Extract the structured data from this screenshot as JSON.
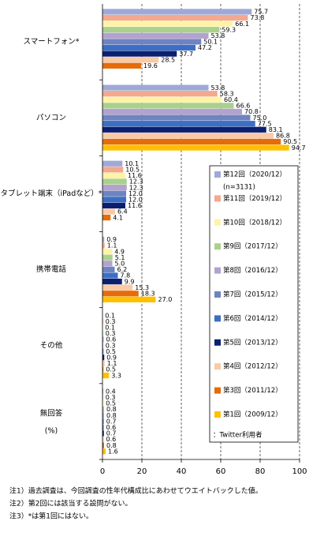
{
  "chart_data": {
    "type": "hbar",
    "categories": [
      "スマートフォン*",
      "パソコン",
      "タブレット端末（iPadなど）*",
      "携帯電話",
      "その他",
      "無回答"
    ],
    "xlabel": "(%)",
    "xlim": [
      0,
      100
    ],
    "xticks": [
      0,
      20,
      40,
      60,
      80,
      100
    ],
    "grid": true,
    "legend_notes": [
      "(n=3131)",
      "：Twitter利用者"
    ],
    "series": [
      {
        "name": "第12回（2020/12）",
        "color": "#9ea9d8",
        "values": [
          75.7,
          53.8,
          10.1,
          0.9,
          0.1,
          0.4
        ],
        "value_labels": [
          "75.7",
          "53.8",
          "10.1",
          "0.9",
          "0.1",
          "0.4"
        ]
      },
      {
        "name": "第11回（2019/12）",
        "color": "#f4a88e",
        "values": [
          73.8,
          58.3,
          10.5,
          1.1,
          0.3,
          0.3
        ],
        "value_labels": [
          "73.8",
          "58.3",
          "10.5",
          "1.1",
          "0.3",
          "0.3"
        ]
      },
      {
        "name": "第10回（2018/12）",
        "color": "#fff3a6",
        "values": [
          66.1,
          60.4,
          11.6,
          4.9,
          0.1,
          0.5
        ],
        "value_labels": [
          "66.1",
          "60.4",
          "11.6",
          "4.9",
          "0.1",
          "0.5"
        ]
      },
      {
        "name": "第9回（2017/12）",
        "color": "#a9d18e",
        "values": [
          59.3,
          66.6,
          12.3,
          5.1,
          0.3,
          0.8
        ],
        "value_labels": [
          "59.3",
          "66.6",
          "12.3",
          "5.1",
          "0.3",
          "0.8"
        ]
      },
      {
        "name": "第8回（2016/12）",
        "color": "#b3a2d0",
        "values": [
          53.8,
          70.8,
          12.3,
          5.0,
          0.6,
          0.8
        ],
        "value_labels": [
          "53.8",
          "70.8",
          "12.3",
          "5.0",
          "0.6",
          "0.8"
        ]
      },
      {
        "name": "第7回（2015/12）",
        "color": "#6e84c0",
        "values": [
          50.1,
          75.0,
          12.0,
          6.2,
          0.3,
          0.7
        ],
        "value_labels": [
          "50.1",
          "75.0",
          "12.0",
          "6.2",
          "0.3",
          "0.7"
        ]
      },
      {
        "name": "第6回（2014/12）",
        "color": "#3c6fc4",
        "values": [
          47.2,
          77.5,
          12.0,
          7.8,
          0.5,
          0.6
        ],
        "value_labels": [
          "47.2",
          "77.5",
          "12.0",
          "7.8",
          "0.5",
          "0.6"
        ]
      },
      {
        "name": "第5回（2013/12）",
        "color": "#0b1f70",
        "values": [
          37.7,
          83.1,
          11.6,
          9.9,
          0.9,
          0.7
        ],
        "value_labels": [
          "37.7",
          "83.1",
          "11.6",
          "9.9",
          "0.9",
          "0.7"
        ]
      },
      {
        "name": "第4回（2012/12）",
        "color": "#f9caa6",
        "values": [
          28.5,
          86.8,
          6.4,
          15.3,
          1.1,
          0.6
        ],
        "value_labels": [
          "28.5",
          "86.8",
          "6.4",
          "15.3",
          "1.1",
          "0.6"
        ]
      },
      {
        "name": "第3回（2011/12）",
        "color": "#e46c0a",
        "values": [
          19.6,
          90.5,
          4.1,
          18.3,
          0.5,
          0.8
        ],
        "value_labels": [
          "19.6",
          "90.5",
          "4.1",
          "18.3",
          "0.5",
          "0.8"
        ]
      },
      {
        "name": "第1回（2009/12）",
        "color": "#ffc000",
        "values": [
          null,
          94.7,
          null,
          27.0,
          3.3,
          1.6
        ],
        "value_labels": [
          null,
          "94.7",
          null,
          "27.0",
          "3.3",
          "1.6"
        ]
      }
    ]
  },
  "notes": [
    "注1）過去調査は、今回調査の性年代構成比にあわせてウエイトバックした値。",
    "注2）第2回には該当する設問がない。",
    "注3）*は第1回にはない。"
  ]
}
